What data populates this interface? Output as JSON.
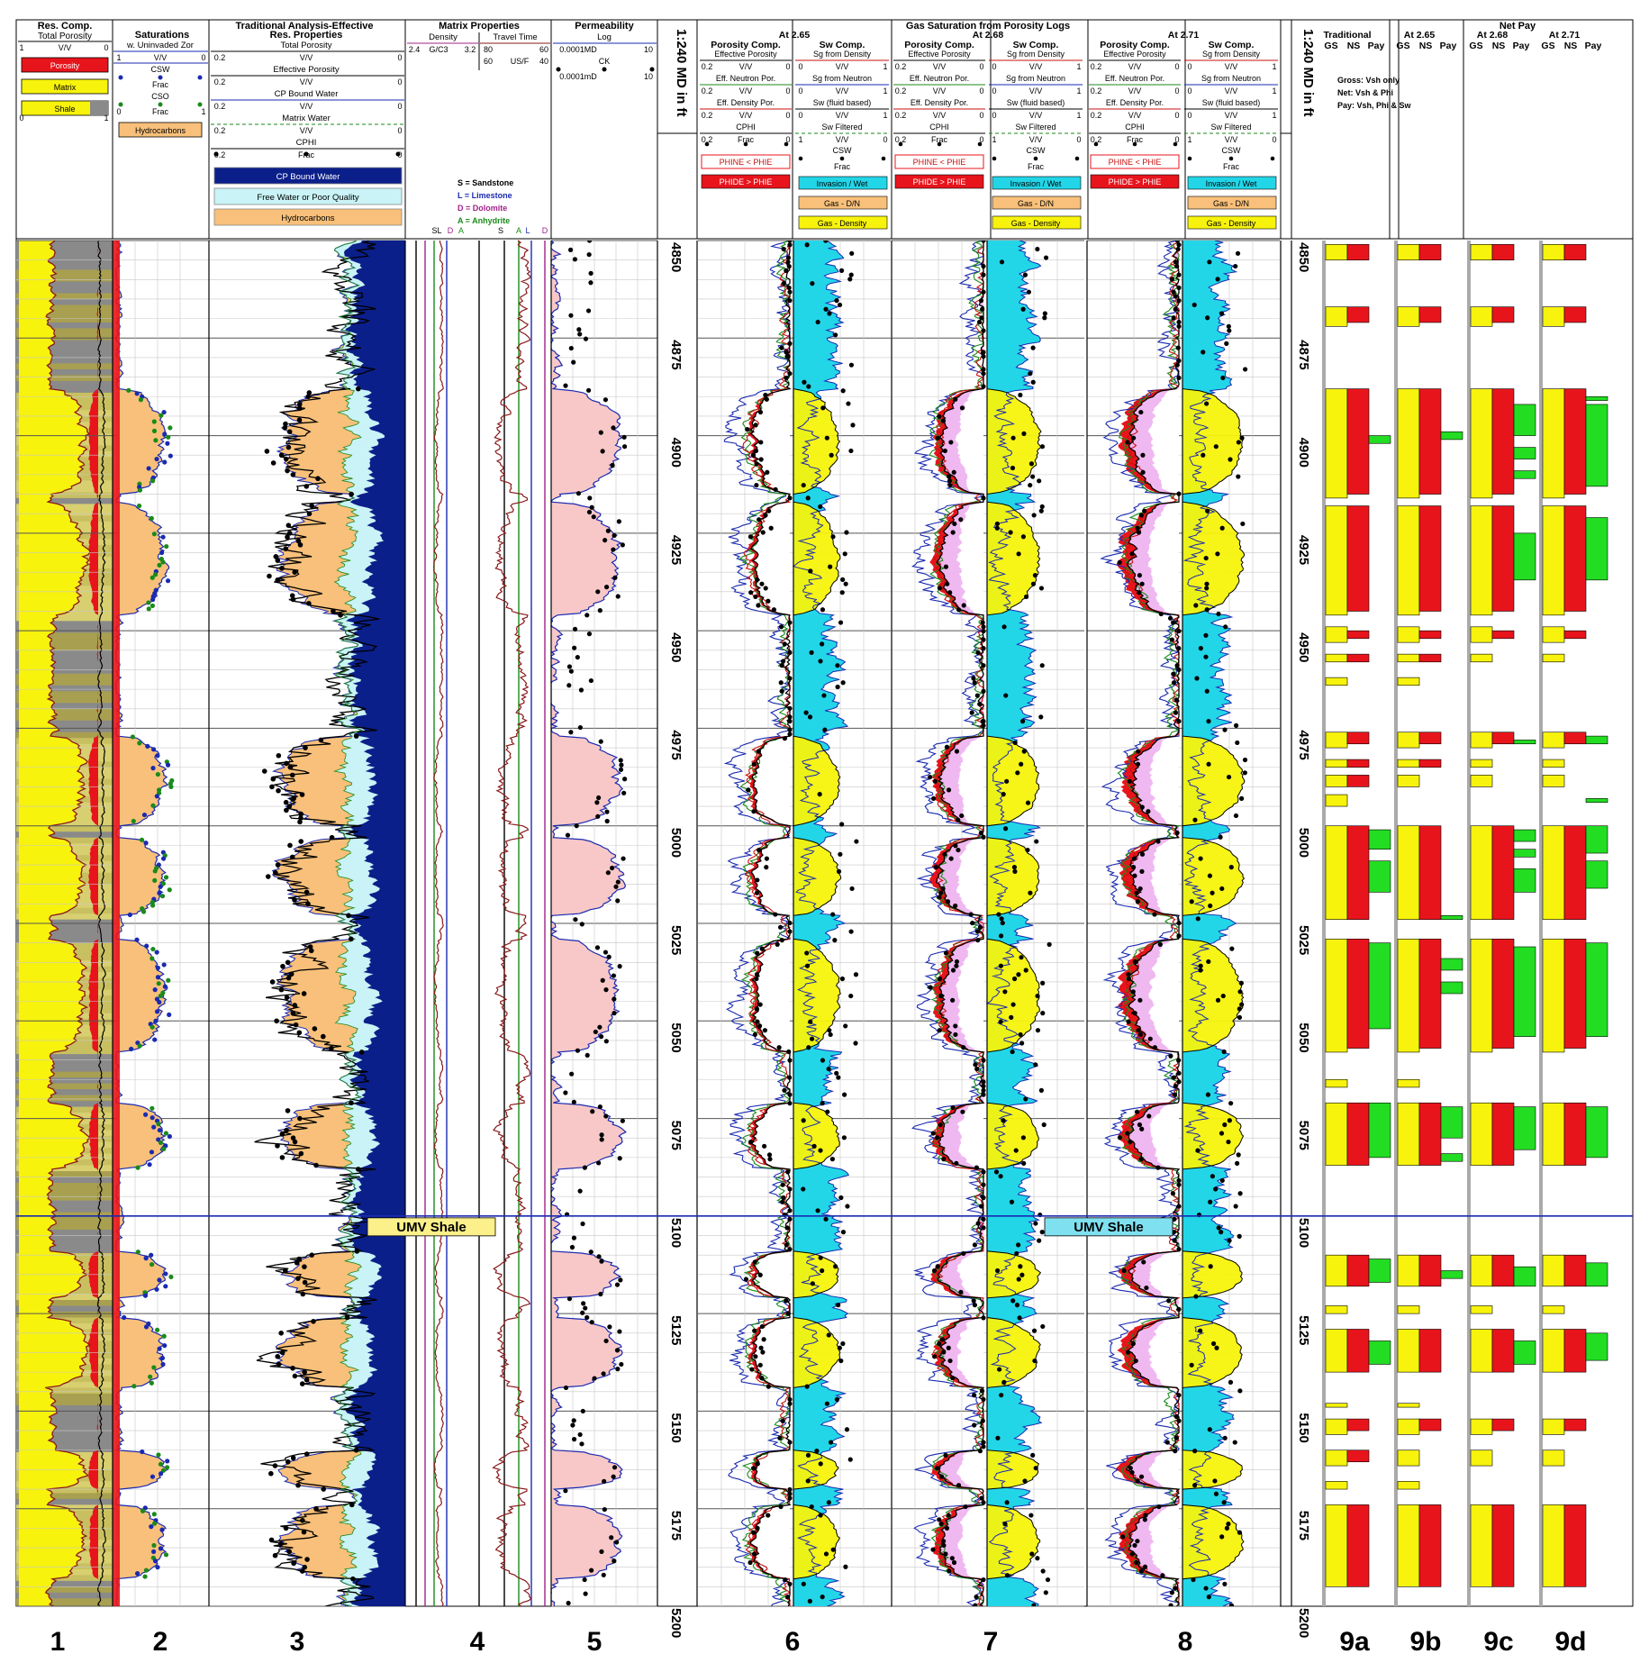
{
  "header": {
    "res_comp": {
      "title": "Res. Comp.",
      "sub": "Total Porosity",
      "scale_l": "1",
      "unit": "V/V",
      "scale_r": "0",
      "boxes": [
        {
          "label": "Porosity",
          "color": "#e8141c"
        },
        {
          "label": "Matrix",
          "color": "#f7f30c"
        },
        {
          "label": "Shale",
          "color": "#f7f30c"
        }
      ],
      "bot_l": "0",
      "bot_r": "1"
    },
    "trad_title": "Traditional Analysis-Effective",
    "saturations": {
      "title": "Saturations",
      "sub": "w. Uninvaded Zor",
      "l": "1",
      "unit": "V/V",
      "r": "0",
      "csw": "CSW",
      "frac1": "Frac",
      "cso": "CSO",
      "frac2": "Frac",
      "frac_l": "0",
      "frac_r": "1",
      "hyd": "Hydrocarbons"
    },
    "res_prop": {
      "title": "Res. Properties",
      "rows": [
        {
          "name": "Total Porosity",
          "l": "0.2",
          "unit": "V/V",
          "r": "0"
        },
        {
          "name": "Effective Porosity",
          "l": "0.2",
          "unit": "V/V",
          "r": "0"
        },
        {
          "name": "CP Bound Water",
          "l": "0.2",
          "unit": "V/V",
          "r": "0"
        },
        {
          "name": "Matrix Water",
          "l": "0.2",
          "unit": "V/V",
          "r": "0"
        },
        {
          "name": "CPHI",
          "l": "0.2",
          "unit": "Frac",
          "r": "0"
        }
      ],
      "legend": [
        {
          "label": "CP Bound Water",
          "color": "#0b1f8a",
          "text": "#fff"
        },
        {
          "label": "Free Water or Poor Quality",
          "color": "#c9f3f6",
          "text": "#000"
        },
        {
          "label": "Hydrocarbons",
          "color": "#f8c07a",
          "text": "#000"
        }
      ]
    },
    "matrix": {
      "title": "Matrix Properties",
      "density": "Density",
      "travel": "Travel Time",
      "d_l": "2.4",
      "d_u": "G/C3",
      "d_r": "3.2",
      "tt1_l": "80",
      "tt1_r": "60",
      "tt2_l": "60",
      "tt2_u": "US/F",
      "tt2_r": "40",
      "lith": [
        {
          "label": "S = Sandstone",
          "color": "#000"
        },
        {
          "label": "L = Limestone",
          "color": "#1a2ab0"
        },
        {
          "label": "D = Dolomite",
          "color": "#a0228a"
        },
        {
          "label": "A = Anhydrite",
          "color": "#1a8a1a"
        }
      ],
      "marks_l": [
        "SL",
        "D",
        "A"
      ],
      "marks_r": [
        "S",
        "A",
        "L",
        "D"
      ]
    },
    "perm": {
      "title": "Permeability",
      "log": "Log",
      "l": "0.0001MD",
      "r": "10",
      "ck": "CK",
      "l2": "0.0001mD",
      "r2": "10"
    },
    "depth_label": "1:240 MD in ft",
    "gas_title": "Gas Saturation from Porosity Logs",
    "gas_groups": [
      {
        "at": "At 2.65"
      },
      {
        "at": "At 2.68"
      },
      {
        "at": "At 2.71"
      }
    ],
    "por_comp": {
      "title": "Porosity Comp.",
      "rows": [
        "Effective Porosity",
        "Eff. Neutron Por.",
        "Eff. Density Por.",
        "CPHI"
      ],
      "l": "0.2",
      "unit": "V/V",
      "r": "0",
      "frac": "Frac",
      "b1": "PHINE < PHIE",
      "b2": "PHIDE > PHIE"
    },
    "sw_comp": {
      "title": "Sw Comp.",
      "rows": [
        "Sg from Density",
        "Sg from Neutron",
        "Sw (fluid based)",
        "Sw Filtered"
      ],
      "l": "0",
      "unit": "V/V",
      "r": "1",
      "csw": "CSW",
      "frac": "Frac",
      "b1": "Invasion / Wet",
      "b2": "Gas - D/N",
      "b3": "Gas - Density"
    },
    "net_pay": {
      "title": "Net Pay",
      "groups": [
        "Traditional",
        "At 2.65",
        "At 2.68",
        "At 2.71"
      ],
      "cols": [
        "GS",
        "NS",
        "Pay"
      ],
      "notes": [
        "Gross: Vsh only",
        "Net: Vsh & Phi",
        "Pay: Vsh, Phi & Sw"
      ]
    }
  },
  "annotations": {
    "umv_shale": "UMV Shale"
  },
  "track_numbers": [
    "1",
    "2",
    "3",
    "4",
    "5",
    "6",
    "7",
    "8",
    "9a",
    "9b",
    "9c",
    "9d"
  ],
  "colors": {
    "porosity": "#e8141c",
    "matrix": "#f7f30c",
    "shale": "#8a8a8a",
    "hydro": "#f8c07a",
    "bound": "#0b1f8a",
    "freewater": "#c9f3f6",
    "cyan": "#22d6e8",
    "pink": "#f8c8c8",
    "pinkgas": "#f0b8f0",
    "pay": "#22dd22",
    "grid": "#c8c8c8"
  },
  "chart_data": {
    "type": "well-log",
    "depth_unit": "ft MD",
    "depth_range": [
      4850,
      5200
    ],
    "depth_ticks": [
      4850,
      4875,
      4900,
      4925,
      4950,
      4975,
      5000,
      5025,
      5050,
      5075,
      5100,
      5125,
      5150,
      5175,
      "5200"
    ],
    "markers": [
      {
        "name": "UMV Shale",
        "depth": 5100
      }
    ],
    "reservoir_zones": [
      [
        4888,
        4915
      ],
      [
        4917,
        4946
      ],
      [
        4977,
        5000
      ],
      [
        5003,
        5023
      ],
      [
        5029,
        5058
      ],
      [
        5071,
        5088
      ],
      [
        5109,
        5121
      ],
      [
        5126,
        5144
      ],
      [
        5160,
        5170
      ],
      [
        5174,
        5193
      ]
    ],
    "net_pay": [
      {
        "name": "Traditional",
        "gross": [
          [
            4851,
            4855
          ],
          [
            4867,
            4872
          ],
          [
            4888,
            4916
          ],
          [
            4918,
            4946
          ],
          [
            4949,
            4953
          ],
          [
            4956,
            4958
          ],
          [
            4962,
            4964
          ],
          [
            4976,
            4980
          ],
          [
            4983,
            4985
          ],
          [
            4987,
            4990
          ],
          [
            4992,
            4995
          ],
          [
            5000,
            5024
          ],
          [
            5029,
            5058
          ],
          [
            5065,
            5067
          ],
          [
            5071,
            5087
          ],
          [
            5110,
            5118
          ],
          [
            5123,
            5125
          ],
          [
            5129,
            5140
          ],
          [
            5148,
            5149
          ],
          [
            5152,
            5156
          ],
          [
            5160,
            5164
          ],
          [
            5168,
            5170
          ],
          [
            5174,
            5195
          ]
        ],
        "net": [
          [
            4851,
            4855
          ],
          [
            4867,
            4871
          ],
          [
            4888,
            4915
          ],
          [
            4918,
            4945
          ],
          [
            4950,
            4952
          ],
          [
            4956,
            4958
          ],
          [
            4976,
            4979
          ],
          [
            4983,
            4985
          ],
          [
            4987,
            4990
          ],
          [
            5000,
            5024
          ],
          [
            5029,
            5057
          ],
          [
            5071,
            5087
          ],
          [
            5110,
            5118
          ],
          [
            5129,
            5140
          ],
          [
            5152,
            5155
          ],
          [
            5160,
            5163
          ],
          [
            5174,
            5195
          ]
        ],
        "pay": [
          [
            4900,
            4902
          ],
          [
            5001,
            5006
          ],
          [
            5009,
            5017
          ],
          [
            5030,
            5052
          ],
          [
            5071,
            5085
          ],
          [
            5111,
            5117
          ],
          [
            5132,
            5138
          ]
        ]
      },
      {
        "name": "At 2.65",
        "gross": [
          [
            4851,
            4855
          ],
          [
            4867,
            4872
          ],
          [
            4888,
            4916
          ],
          [
            4918,
            4946
          ],
          [
            4949,
            4953
          ],
          [
            4956,
            4958
          ],
          [
            4962,
            4964
          ],
          [
            4976,
            4980
          ],
          [
            4983,
            4985
          ],
          [
            4987,
            4990
          ],
          [
            5000,
            5024
          ],
          [
            5029,
            5058
          ],
          [
            5065,
            5067
          ],
          [
            5071,
            5087
          ],
          [
            5110,
            5118
          ],
          [
            5123,
            5125
          ],
          [
            5129,
            5140
          ],
          [
            5148,
            5149
          ],
          [
            5152,
            5156
          ],
          [
            5160,
            5164
          ],
          [
            5168,
            5170
          ],
          [
            5174,
            5195
          ]
        ],
        "net": [
          [
            4851,
            4855
          ],
          [
            4867,
            4871
          ],
          [
            4888,
            4915
          ],
          [
            4918,
            4945
          ],
          [
            4950,
            4952
          ],
          [
            4956,
            4958
          ],
          [
            4976,
            4979
          ],
          [
            4983,
            4985
          ],
          [
            5000,
            5024
          ],
          [
            5029,
            5057
          ],
          [
            5071,
            5087
          ],
          [
            5110,
            5118
          ],
          [
            5129,
            5140
          ],
          [
            5152,
            5155
          ],
          [
            5174,
            5195
          ]
        ],
        "pay": [
          [
            4899,
            4901
          ],
          [
            5023,
            5024
          ],
          [
            5034,
            5037
          ],
          [
            5040,
            5043
          ],
          [
            5072,
            5080
          ],
          [
            5084,
            5086
          ],
          [
            5114,
            5116
          ]
        ]
      },
      {
        "name": "At 2.68",
        "gross": [
          [
            4851,
            4855
          ],
          [
            4867,
            4872
          ],
          [
            4888,
            4916
          ],
          [
            4918,
            4946
          ],
          [
            4949,
            4953
          ],
          [
            4956,
            4958
          ],
          [
            4976,
            4980
          ],
          [
            4983,
            4985
          ],
          [
            4987,
            4990
          ],
          [
            5000,
            5024
          ],
          [
            5029,
            5058
          ],
          [
            5071,
            5087
          ],
          [
            5110,
            5118
          ],
          [
            5123,
            5125
          ],
          [
            5129,
            5140
          ],
          [
            5152,
            5156
          ],
          [
            5160,
            5164
          ],
          [
            5174,
            5195
          ]
        ],
        "net": [
          [
            4851,
            4855
          ],
          [
            4867,
            4871
          ],
          [
            4888,
            4915
          ],
          [
            4918,
            4945
          ],
          [
            4950,
            4952
          ],
          [
            4976,
            4979
          ],
          [
            5000,
            5024
          ],
          [
            5029,
            5057
          ],
          [
            5071,
            5087
          ],
          [
            5110,
            5118
          ],
          [
            5129,
            5140
          ],
          [
            5152,
            5155
          ],
          [
            5174,
            5195
          ]
        ],
        "pay": [
          [
            4892,
            4900
          ],
          [
            4903,
            4906
          ],
          [
            4909,
            4911
          ],
          [
            4925,
            4937
          ],
          [
            4978,
            4979
          ],
          [
            5001,
            5004
          ],
          [
            5006,
            5008
          ],
          [
            5011,
            5017
          ],
          [
            5031,
            5054
          ],
          [
            5072,
            5083
          ],
          [
            5113,
            5118
          ],
          [
            5132,
            5138
          ]
        ]
      },
      {
        "name": "At 2.71",
        "gross": [
          [
            4851,
            4855
          ],
          [
            4867,
            4872
          ],
          [
            4888,
            4916
          ],
          [
            4918,
            4946
          ],
          [
            4949,
            4953
          ],
          [
            4956,
            4958
          ],
          [
            4976,
            4980
          ],
          [
            4983,
            4985
          ],
          [
            4987,
            4990
          ],
          [
            5000,
            5024
          ],
          [
            5029,
            5058
          ],
          [
            5071,
            5087
          ],
          [
            5110,
            5118
          ],
          [
            5123,
            5125
          ],
          [
            5129,
            5140
          ],
          [
            5152,
            5156
          ],
          [
            5160,
            5164
          ],
          [
            5174,
            5195
          ]
        ],
        "net": [
          [
            4851,
            4855
          ],
          [
            4867,
            4871
          ],
          [
            4888,
            4915
          ],
          [
            4918,
            4945
          ],
          [
            4950,
            4952
          ],
          [
            4976,
            4979
          ],
          [
            5000,
            5024
          ],
          [
            5029,
            5057
          ],
          [
            5071,
            5087
          ],
          [
            5110,
            5118
          ],
          [
            5129,
            5140
          ],
          [
            5152,
            5155
          ],
          [
            5174,
            5195
          ]
        ],
        "pay": [
          [
            4890,
            4891
          ],
          [
            4892,
            4913
          ],
          [
            4921,
            4937
          ],
          [
            4977,
            4979
          ],
          [
            4993,
            4994
          ],
          [
            5000,
            5007
          ],
          [
            5009,
            5016
          ],
          [
            5030,
            5054
          ],
          [
            5072,
            5085
          ],
          [
            5112,
            5118
          ],
          [
            5130,
            5137
          ]
        ]
      }
    ]
  }
}
